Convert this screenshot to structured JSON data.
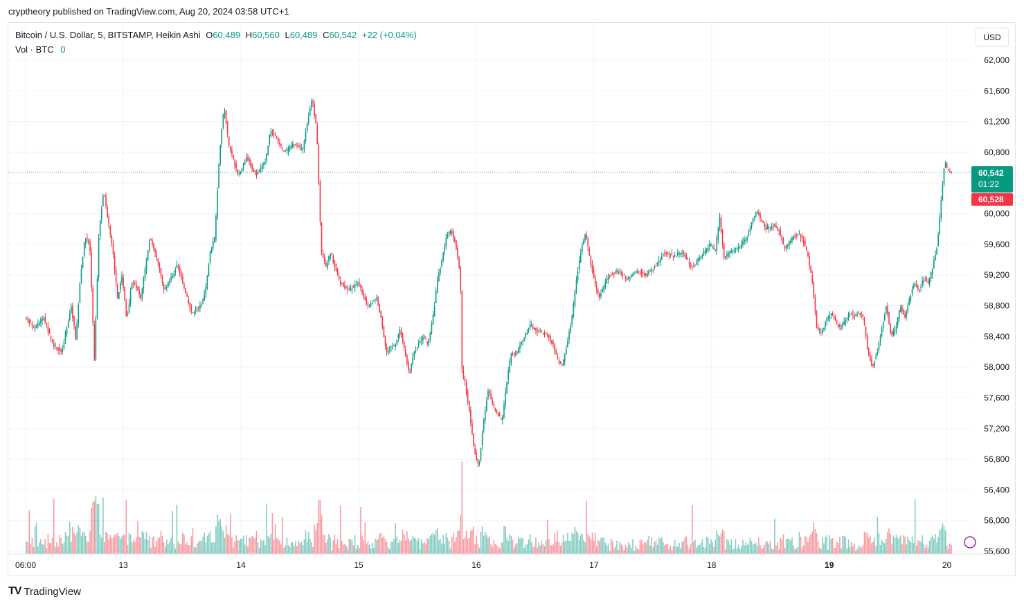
{
  "header": {
    "published": "cryptheory published on TradingView.com, Aug 20, 2024 03:58 UTC+1"
  },
  "legend": {
    "symbol": "Bitcoin / U.S. Dollar, 5, BITSTAMP, Heikin Ashi",
    "o_label": "O",
    "o_value": "60,489",
    "h_label": "H",
    "h_value": "60,560",
    "l_label": "L",
    "l_value": "60,489",
    "c_label": "C",
    "c_value": "60,542",
    "change": "+22 (+0.04%)",
    "vol_label": "Vol · BTC",
    "vol_value": "0"
  },
  "currency_button": "USD",
  "price_tag": {
    "price": "60,542",
    "countdown": "01:22",
    "low": "60,528"
  },
  "footer": {
    "brand": "TradingView",
    "logo": "TV"
  },
  "colors": {
    "up": "#089981",
    "down": "#f23645",
    "grid": "#f0f3fa"
  },
  "chart_data": {
    "type": "candlestick",
    "subtype": "heikin-ashi",
    "ylim": [
      55600,
      62200
    ],
    "y_ticks": [
      "62,000",
      "61,600",
      "61,200",
      "60,800",
      "60,400",
      "60,000",
      "59,600",
      "59,200",
      "58,800",
      "58,400",
      "58,000",
      "57,600",
      "57,200",
      "56,800",
      "56,400",
      "56,000",
      "55,600"
    ],
    "y_tick_values": [
      62000,
      61600,
      61200,
      60800,
      60400,
      60000,
      59600,
      59200,
      58800,
      58400,
      58000,
      57600,
      57200,
      56800,
      56400,
      56000,
      55600
    ],
    "x_ticks": [
      "06:00",
      "13",
      "14",
      "15",
      "16",
      "17",
      "18",
      "19",
      "20"
    ],
    "x_tick_bold": [
      false,
      false,
      false,
      false,
      false,
      false,
      false,
      true,
      false
    ],
    "x_tick_time": [
      0.0,
      0.1055,
      0.2325,
      0.3595,
      0.4865,
      0.6135,
      0.7405,
      0.8675,
      0.9945
    ],
    "last_price": 60542,
    "price_path": [
      [
        0.0,
        58650
      ],
      [
        0.01,
        58500
      ],
      [
        0.02,
        58650
      ],
      [
        0.03,
        58300
      ],
      [
        0.04,
        58200
      ],
      [
        0.05,
        58800
      ],
      [
        0.055,
        58350
      ],
      [
        0.06,
        59200
      ],
      [
        0.065,
        59700
      ],
      [
        0.07,
        59600
      ],
      [
        0.075,
        58100
      ],
      [
        0.08,
        59800
      ],
      [
        0.085,
        60300
      ],
      [
        0.09,
        59900
      ],
      [
        0.095,
        59500
      ],
      [
        0.1,
        58900
      ],
      [
        0.105,
        59200
      ],
      [
        0.11,
        58600
      ],
      [
        0.115,
        59100
      ],
      [
        0.12,
        59050
      ],
      [
        0.125,
        58900
      ],
      [
        0.13,
        59300
      ],
      [
        0.135,
        59700
      ],
      [
        0.14,
        59500
      ],
      [
        0.145,
        59300
      ],
      [
        0.15,
        59000
      ],
      [
        0.16,
        59200
      ],
      [
        0.165,
        59350
      ],
      [
        0.17,
        59100
      ],
      [
        0.175,
        58900
      ],
      [
        0.18,
        58700
      ],
      [
        0.19,
        58800
      ],
      [
        0.195,
        59000
      ],
      [
        0.2,
        59500
      ],
      [
        0.205,
        59700
      ],
      [
        0.21,
        60800
      ],
      [
        0.215,
        61400
      ],
      [
        0.22,
        60900
      ],
      [
        0.225,
        60700
      ],
      [
        0.23,
        60500
      ],
      [
        0.24,
        60750
      ],
      [
        0.245,
        60600
      ],
      [
        0.25,
        60500
      ],
      [
        0.26,
        60700
      ],
      [
        0.265,
        61100
      ],
      [
        0.27,
        61000
      ],
      [
        0.28,
        60800
      ],
      [
        0.29,
        60900
      ],
      [
        0.3,
        60850
      ],
      [
        0.305,
        61200
      ],
      [
        0.31,
        61500
      ],
      [
        0.315,
        61100
      ],
      [
        0.32,
        59500
      ],
      [
        0.325,
        59300
      ],
      [
        0.33,
        59500
      ],
      [
        0.34,
        59100
      ],
      [
        0.35,
        59000
      ],
      [
        0.36,
        59100
      ],
      [
        0.37,
        58800
      ],
      [
        0.38,
        58900
      ],
      [
        0.385,
        58600
      ],
      [
        0.39,
        58200
      ],
      [
        0.4,
        58300
      ],
      [
        0.405,
        58500
      ],
      [
        0.41,
        58200
      ],
      [
        0.415,
        57900
      ],
      [
        0.42,
        58200
      ],
      [
        0.43,
        58400
      ],
      [
        0.435,
        58300
      ],
      [
        0.44,
        58600
      ],
      [
        0.445,
        59100
      ],
      [
        0.45,
        59400
      ],
      [
        0.455,
        59700
      ],
      [
        0.46,
        59800
      ],
      [
        0.465,
        59600
      ],
      [
        0.47,
        59200
      ],
      [
        0.472,
        57900
      ],
      [
        0.475,
        57800
      ],
      [
        0.48,
        57400
      ],
      [
        0.485,
        56900
      ],
      [
        0.49,
        56700
      ],
      [
        0.495,
        57300
      ],
      [
        0.5,
        57700
      ],
      [
        0.505,
        57500
      ],
      [
        0.51,
        57400
      ],
      [
        0.515,
        57300
      ],
      [
        0.52,
        57800
      ],
      [
        0.525,
        58200
      ],
      [
        0.53,
        58150
      ],
      [
        0.535,
        58300
      ],
      [
        0.54,
        58400
      ],
      [
        0.545,
        58550
      ],
      [
        0.55,
        58500
      ],
      [
        0.56,
        58450
      ],
      [
        0.565,
        58400
      ],
      [
        0.57,
        58300
      ],
      [
        0.575,
        58100
      ],
      [
        0.58,
        58000
      ],
      [
        0.585,
        58300
      ],
      [
        0.59,
        58600
      ],
      [
        0.595,
        59100
      ],
      [
        0.6,
        59500
      ],
      [
        0.605,
        59750
      ],
      [
        0.61,
        59400
      ],
      [
        0.615,
        59100
      ],
      [
        0.62,
        58900
      ],
      [
        0.625,
        59050
      ],
      [
        0.63,
        59200
      ],
      [
        0.64,
        59250
      ],
      [
        0.65,
        59150
      ],
      [
        0.66,
        59250
      ],
      [
        0.67,
        59200
      ],
      [
        0.68,
        59300
      ],
      [
        0.69,
        59500
      ],
      [
        0.7,
        59450
      ],
      [
        0.71,
        59500
      ],
      [
        0.72,
        59300
      ],
      [
        0.73,
        59450
      ],
      [
        0.74,
        59600
      ],
      [
        0.745,
        59500
      ],
      [
        0.75,
        59950
      ],
      [
        0.755,
        59400
      ],
      [
        0.76,
        59500
      ],
      [
        0.77,
        59550
      ],
      [
        0.78,
        59700
      ],
      [
        0.785,
        59900
      ],
      [
        0.79,
        60050
      ],
      [
        0.795,
        59900
      ],
      [
        0.8,
        59800
      ],
      [
        0.81,
        59850
      ],
      [
        0.815,
        59750
      ],
      [
        0.82,
        59550
      ],
      [
        0.83,
        59700
      ],
      [
        0.835,
        59750
      ],
      [
        0.84,
        59650
      ],
      [
        0.845,
        59450
      ],
      [
        0.85,
        59100
      ],
      [
        0.855,
        58500
      ],
      [
        0.86,
        58450
      ],
      [
        0.865,
        58600
      ],
      [
        0.87,
        58700
      ],
      [
        0.875,
        58600
      ],
      [
        0.88,
        58500
      ],
      [
        0.885,
        58600
      ],
      [
        0.89,
        58700
      ],
      [
        0.895,
        58650
      ],
      [
        0.9,
        58700
      ],
      [
        0.905,
        58650
      ],
      [
        0.91,
        58200
      ],
      [
        0.915,
        58000
      ],
      [
        0.92,
        58200
      ],
      [
        0.925,
        58500
      ],
      [
        0.93,
        58800
      ],
      [
        0.935,
        58400
      ],
      [
        0.94,
        58500
      ],
      [
        0.945,
        58800
      ],
      [
        0.95,
        58650
      ],
      [
        0.955,
        58900
      ],
      [
        0.96,
        59100
      ],
      [
        0.965,
        59000
      ],
      [
        0.97,
        59150
      ],
      [
        0.975,
        59100
      ],
      [
        0.98,
        59300
      ],
      [
        0.985,
        59600
      ],
      [
        0.99,
        60300
      ],
      [
        0.993,
        60700
      ],
      [
        0.996,
        60550
      ],
      [
        1.0,
        60542
      ]
    ]
  }
}
